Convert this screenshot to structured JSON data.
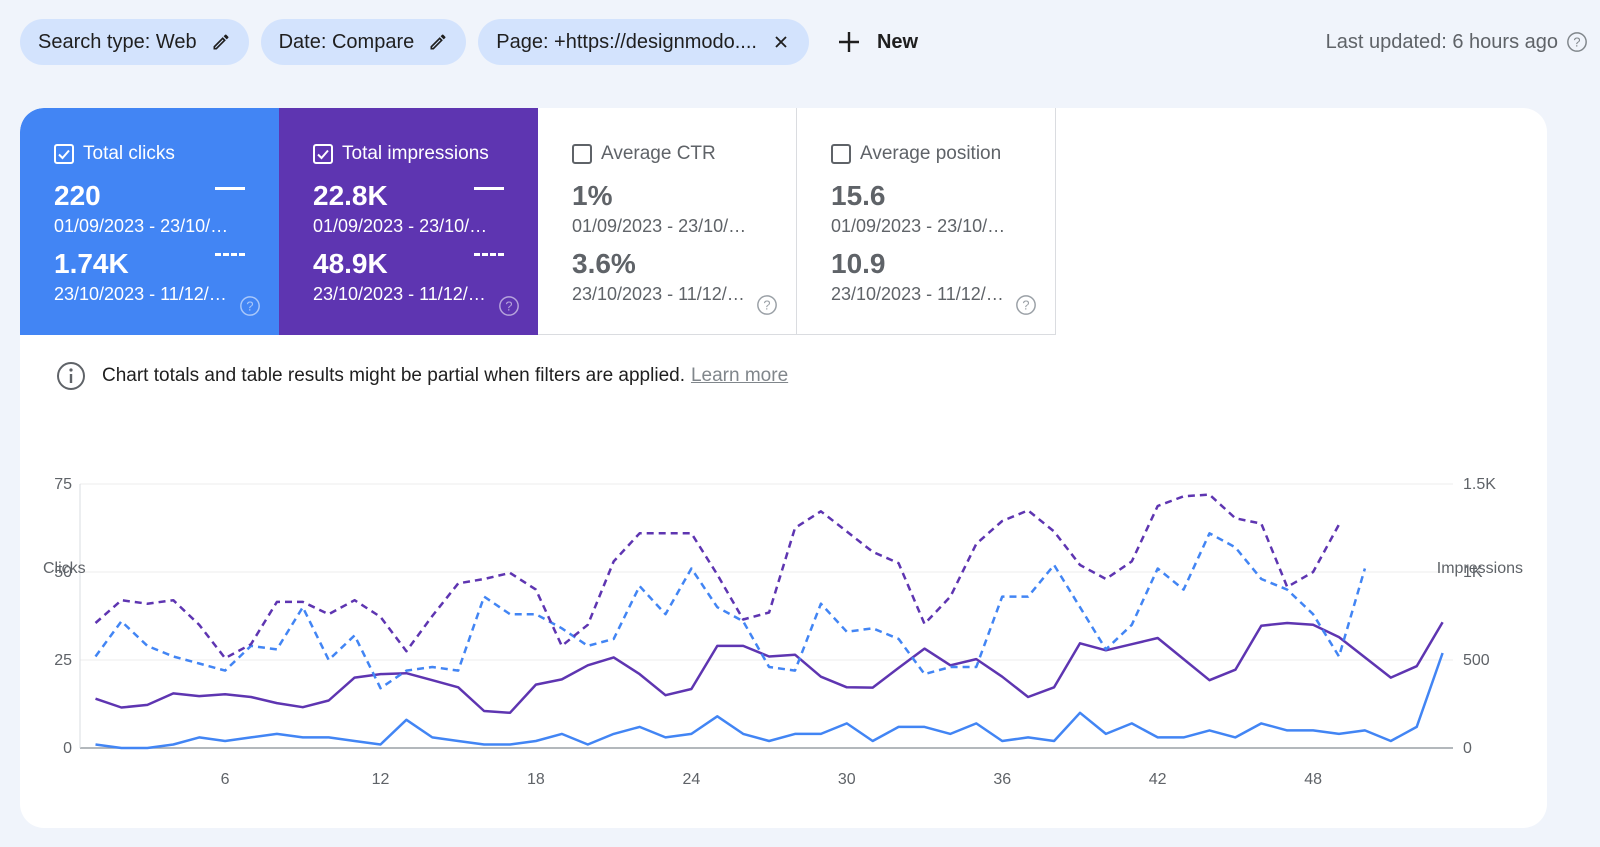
{
  "filters": [
    {
      "label": "Search type: Web",
      "icon": "pencil-icon"
    },
    {
      "label": "Date: Compare",
      "icon": "pencil-icon"
    },
    {
      "label": "Page: +https://designmodo....",
      "icon": "close-icon"
    }
  ],
  "new_label": "New",
  "last_updated": "Last updated: 6 hours ago",
  "metrics": [
    {
      "label": "Total clicks",
      "checked": true,
      "value1": "220",
      "range1": "01/09/2023 - 23/10/…",
      "value2": "1.74K",
      "range2": "23/10/2023 - 11/12/…",
      "color": "#4285f4"
    },
    {
      "label": "Total impressions",
      "checked": true,
      "value1": "22.8K",
      "range1": "01/09/2023 - 23/10/…",
      "value2": "48.9K",
      "range2": "23/10/2023 - 11/12/…",
      "color": "#5e35b1"
    },
    {
      "label": "Average CTR",
      "checked": false,
      "value1": "1%",
      "range1": "01/09/2023 - 23/10/…",
      "value2": "3.6%",
      "range2": "23/10/2023 - 11/12/…"
    },
    {
      "label": "Average position",
      "checked": false,
      "value1": "15.6",
      "range1": "01/09/2023 - 23/10/…",
      "value2": "10.9",
      "range2": "23/10/2023 - 11/12/…"
    }
  ],
  "notice": {
    "text": "Chart totals and table results might be partial when filters are applied.",
    "link": "Learn more"
  },
  "chart_data": {
    "type": "line",
    "ylabel_left": "Clicks",
    "ylabel_right": "Impressions",
    "y_left_ticks": [
      "0",
      "25",
      "50",
      "75"
    ],
    "y_left_lim": [
      0,
      75
    ],
    "y_right_ticks": [
      "0",
      "500",
      "1K",
      "1.5K"
    ],
    "y_right_lim": [
      0,
      1500
    ],
    "x_ticks": [
      "6",
      "12",
      "18",
      "24",
      "30",
      "36",
      "42",
      "48"
    ],
    "x_lim": [
      0.4,
      53.4
    ],
    "grid": true,
    "series": [
      {
        "axis": "left",
        "style": "solid",
        "color": "#4285f4",
        "x_start": 1,
        "values": [
          1,
          0,
          0,
          1,
          3,
          2,
          3,
          4,
          3,
          3,
          2,
          1,
          8,
          3,
          2,
          1,
          1,
          2,
          4,
          1,
          4,
          6,
          3,
          4,
          9,
          4,
          2,
          4,
          4,
          7,
          2,
          6,
          6,
          4,
          7,
          2,
          3,
          2,
          10,
          4,
          7,
          3,
          3,
          5,
          3,
          7,
          5,
          5,
          4,
          5,
          2,
          6,
          27
        ]
      },
      {
        "axis": "right",
        "style": "solid",
        "color": "#5e35b1",
        "x_start": 1,
        "values": [
          280,
          230,
          245,
          310,
          295,
          305,
          290,
          255,
          232,
          270,
          400,
          420,
          425,
          385,
          345,
          210,
          200,
          360,
          390,
          470,
          515,
          420,
          300,
          335,
          580,
          580,
          520,
          530,
          405,
          345,
          343,
          455,
          565,
          470,
          505,
          405,
          290,
          345,
          595,
          555,
          590,
          625,
          505,
          385,
          445,
          695,
          710,
          700,
          630,
          515,
          400,
          465,
          715
        ]
      },
      {
        "axis": "left",
        "style": "dashed",
        "color": "#4285f4",
        "x_start": 1,
        "values": [
          26,
          36,
          29,
          26,
          24,
          22,
          29,
          28,
          40,
          25,
          32,
          17,
          22,
          23,
          22,
          43,
          38,
          38,
          34,
          29,
          31,
          46,
          38,
          51,
          40,
          36,
          23,
          22,
          41,
          33,
          34,
          31,
          21,
          23,
          23,
          43,
          43,
          52,
          40,
          28,
          35,
          51,
          45,
          61,
          57,
          48,
          45,
          38,
          26,
          51
        ]
      },
      {
        "axis": "right",
        "style": "dashed",
        "color": "#5e35b1",
        "x_start": 1,
        "values": [
          710,
          840,
          820,
          840,
          700,
          510,
          590,
          830,
          830,
          760,
          840,
          745,
          550,
          750,
          935,
          960,
          995,
          900,
          580,
          700,
          1060,
          1220,
          1220,
          1220,
          985,
          730,
          770,
          1250,
          1345,
          1230,
          1115,
          1050,
          705,
          860,
          1160,
          1290,
          1350,
          1230,
          1040,
          960,
          1060,
          1375,
          1430,
          1440,
          1305,
          1275,
          915,
          1000,
          1270
        ]
      }
    ]
  }
}
